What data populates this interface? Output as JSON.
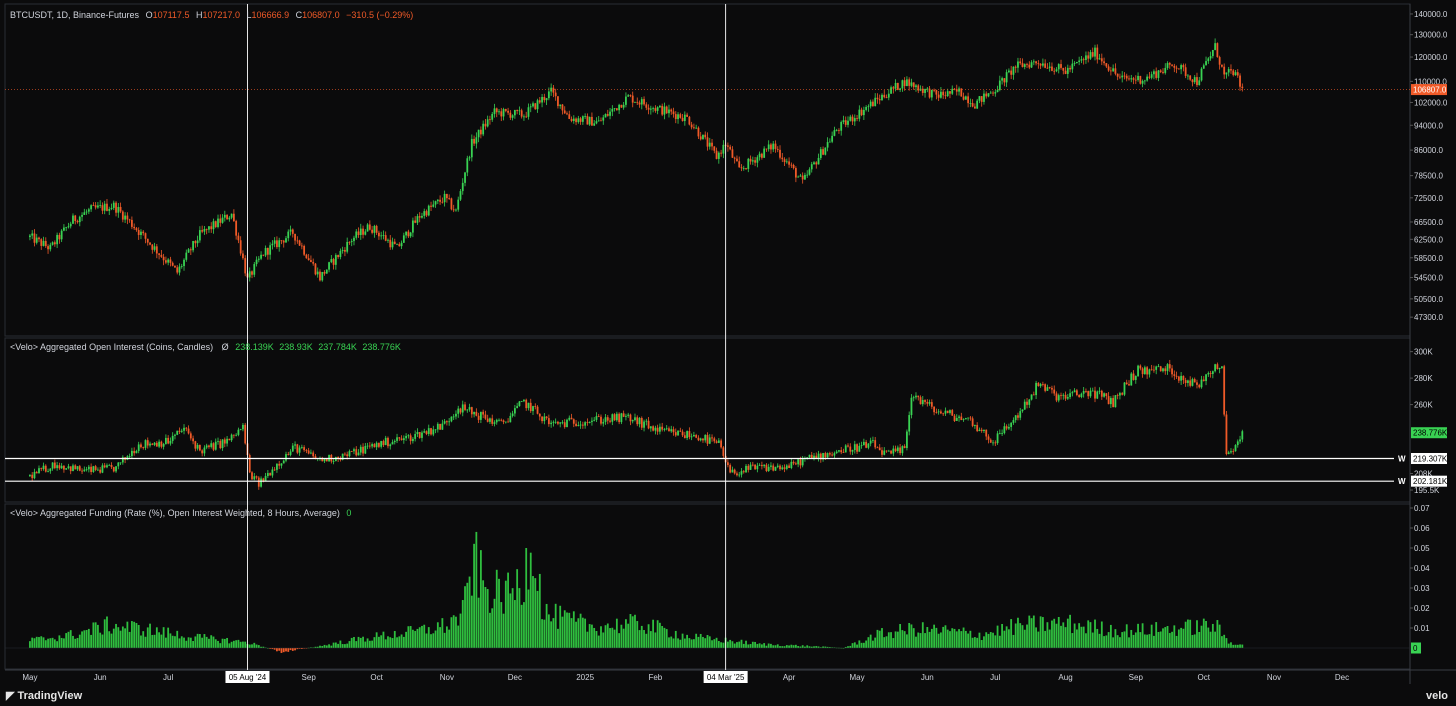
{
  "price_legend": {
    "symbol": "BTCUSDT, 1D, Binance-Futures",
    "o_label": "O",
    "o": "107117.5",
    "h_label": "H",
    "h": "107217.0",
    "l_label": "L",
    "l": "106666.9",
    "c_label": "C",
    "c": "106807.0",
    "change": "−310.5 (−0.29%)"
  },
  "oi_legend": {
    "title": "<Velo> Aggregated Open Interest (Coins, Candles)",
    "symbol": "Ø",
    "values": [
      "238.139K",
      "238.93K",
      "237.784K",
      "238.776K"
    ]
  },
  "funding_legend": {
    "title": "<Velo> Aggregated Funding (Rate (%), Open Interest Weighted, 8 Hours, Average)",
    "value": "0"
  },
  "colors": {
    "up": "#39d353",
    "down": "#f05a28",
    "background": "#0b0b0c",
    "grid": "#1e2025"
  },
  "brand_left": "TradingView",
  "brand_right": "velo",
  "chart_data": [
    {
      "type": "candlestick",
      "name": "BTCUSDT",
      "y_scale": "log",
      "ylim": [
        45500,
        142000
      ],
      "y_ticks": [
        "140000.0",
        "130000.0",
        "120000.0",
        "110000.0",
        "102000.0",
        "94000.0",
        "86000.0",
        "78500.0",
        "72500.0",
        "66500.0",
        "62500.0",
        "58500.0",
        "54500.0",
        "50500.0",
        "47300.0"
      ],
      "last_price_label": "106807.0",
      "last_price": 106807,
      "anchor_points": [
        [
          "2024-05-01",
          63000
        ],
        [
          "2024-05-10",
          60500
        ],
        [
          "2024-05-20",
          67000
        ],
        [
          "2024-05-28",
          69500
        ],
        [
          "2024-06-07",
          70500
        ],
        [
          "2024-06-15",
          66000
        ],
        [
          "2024-06-24",
          61000
        ],
        [
          "2024-07-05",
          55500
        ],
        [
          "2024-07-15",
          63500
        ],
        [
          "2024-07-29",
          68500
        ],
        [
          "2024-08-05",
          54000
        ],
        [
          "2024-08-12",
          59500
        ],
        [
          "2024-08-25",
          64000
        ],
        [
          "2024-09-06",
          54500
        ],
        [
          "2024-09-20",
          62500
        ],
        [
          "2024-09-28",
          65500
        ],
        [
          "2024-10-10",
          60500
        ],
        [
          "2024-10-20",
          68000
        ],
        [
          "2024-10-31",
          72500
        ],
        [
          "2024-11-05",
          69000
        ],
        [
          "2024-11-12",
          88000
        ],
        [
          "2024-11-22",
          98500
        ],
        [
          "2024-12-05",
          97500
        ],
        [
          "2024-12-17",
          106000
        ],
        [
          "2024-12-25",
          96500
        ],
        [
          "2025-01-07",
          95000
        ],
        [
          "2025-01-20",
          104000
        ],
        [
          "2025-02-01",
          100000
        ],
        [
          "2025-02-15",
          96500
        ],
        [
          "2025-02-28",
          84000
        ],
        [
          "2025-03-04",
          88000
        ],
        [
          "2025-03-10",
          80000
        ],
        [
          "2025-03-25",
          87500
        ],
        [
          "2025-04-07",
          76500
        ],
        [
          "2025-04-22",
          92500
        ],
        [
          "2025-05-10",
          103000
        ],
        [
          "2025-05-22",
          110000
        ],
        [
          "2025-06-05",
          104500
        ],
        [
          "2025-06-15",
          106000
        ],
        [
          "2025-06-22",
          101500
        ],
        [
          "2025-07-01",
          107000
        ],
        [
          "2025-07-10",
          116000
        ],
        [
          "2025-07-20",
          118000
        ],
        [
          "2025-08-01",
          114000
        ],
        [
          "2025-08-14",
          122000
        ],
        [
          "2025-08-25",
          111000
        ],
        [
          "2025-09-05",
          111000
        ],
        [
          "2025-09-18",
          117000
        ],
        [
          "2025-09-28",
          110000
        ],
        [
          "2025-10-06",
          124500
        ],
        [
          "2025-10-10",
          112000
        ],
        [
          "2025-10-14",
          114000
        ],
        [
          "2025-10-18",
          106800
        ]
      ]
    },
    {
      "type": "candlestick",
      "name": "Aggregated Open Interest",
      "ylim": [
        191000,
        305000
      ],
      "y_ticks": [
        "300K",
        "280K",
        "260K",
        "208K",
        "195.5K"
      ],
      "last_value_label": "238.776K",
      "last_value": 238776,
      "horizontal_lines": [
        {
          "value": 219307,
          "label": "219.307K",
          "marker": "W"
        },
        {
          "value": 202181,
          "label": "202.181K",
          "marker": "W"
        }
      ],
      "anchor_points": [
        [
          "2024-05-01",
          206000
        ],
        [
          "2024-05-12",
          215000
        ],
        [
          "2024-05-25",
          210000
        ],
        [
          "2024-06-08",
          212000
        ],
        [
          "2024-06-18",
          230000
        ],
        [
          "2024-07-01",
          232000
        ],
        [
          "2024-07-08",
          242000
        ],
        [
          "2024-07-15",
          225000
        ],
        [
          "2024-07-28",
          233000
        ],
        [
          "2024-08-03",
          243000
        ],
        [
          "2024-08-06",
          208000
        ],
        [
          "2024-08-10",
          200000
        ],
        [
          "2024-08-18",
          215000
        ],
        [
          "2024-08-26",
          228000
        ],
        [
          "2024-09-06",
          218000
        ],
        [
          "2024-09-18",
          222000
        ],
        [
          "2024-10-01",
          230000
        ],
        [
          "2024-10-15",
          235000
        ],
        [
          "2024-10-30",
          244000
        ],
        [
          "2024-11-06",
          258000
        ],
        [
          "2024-11-15",
          252000
        ],
        [
          "2024-11-25",
          245000
        ],
        [
          "2024-12-05",
          262000
        ],
        [
          "2024-12-17",
          245000
        ],
        [
          "2025-01-01",
          248000
        ],
        [
          "2025-01-20",
          250000
        ],
        [
          "2025-02-03",
          240000
        ],
        [
          "2025-02-20",
          236000
        ],
        [
          "2025-03-01",
          230000
        ],
        [
          "2025-03-06",
          208000
        ],
        [
          "2025-03-16",
          212000
        ],
        [
          "2025-04-01",
          213000
        ],
        [
          "2025-04-07",
          218000
        ],
        [
          "2025-04-25",
          226000
        ],
        [
          "2025-05-08",
          230000
        ],
        [
          "2025-05-14",
          222000
        ],
        [
          "2025-05-22",
          226000
        ],
        [
          "2025-05-25",
          268000
        ],
        [
          "2025-06-05",
          255000
        ],
        [
          "2025-06-20",
          248000
        ],
        [
          "2025-06-30",
          232000
        ],
        [
          "2025-07-10",
          250000
        ],
        [
          "2025-07-20",
          275000
        ],
        [
          "2025-07-30",
          265000
        ],
        [
          "2025-08-12",
          270000
        ],
        [
          "2025-08-22",
          262000
        ],
        [
          "2025-09-01",
          285000
        ],
        [
          "2025-09-15",
          287000
        ],
        [
          "2025-09-28",
          274000
        ],
        [
          "2025-10-06",
          290000
        ],
        [
          "2025-10-09",
          288000
        ],
        [
          "2025-10-11",
          222000
        ],
        [
          "2025-10-15",
          230000
        ],
        [
          "2025-10-18",
          238776
        ]
      ]
    },
    {
      "type": "bar",
      "name": "Aggregated Funding Rate",
      "ylim": [
        -0.006,
        0.071
      ],
      "y_ticks": [
        "0.07",
        "0.06",
        "0.05",
        "0.04",
        "0.03",
        "0.02",
        "0.01"
      ],
      "last_value_label": "0",
      "anchor_points": [
        [
          "2024-05-01",
          0.004
        ],
        [
          "2024-05-20",
          0.007
        ],
        [
          "2024-06-05",
          0.012
        ],
        [
          "2024-06-20",
          0.01
        ],
        [
          "2024-07-10",
          0.006
        ],
        [
          "2024-08-05",
          0.003
        ],
        [
          "2024-08-20",
          -0.002
        ],
        [
          "2024-09-06",
          0.001
        ],
        [
          "2024-09-25",
          0.005
        ],
        [
          "2024-10-20",
          0.009
        ],
        [
          "2024-11-01",
          0.012
        ],
        [
          "2024-11-08",
          0.018
        ],
        [
          "2024-11-13",
          0.047
        ],
        [
          "2024-11-18",
          0.03
        ],
        [
          "2024-11-28",
          0.028
        ],
        [
          "2024-12-05",
          0.035
        ],
        [
          "2024-12-08",
          0.062
        ],
        [
          "2024-12-14",
          0.018
        ],
        [
          "2025-01-05",
          0.011
        ],
        [
          "2025-01-25",
          0.013
        ],
        [
          "2025-02-15",
          0.006
        ],
        [
          "2025-03-04",
          0.004
        ],
        [
          "2025-03-20",
          0.002
        ],
        [
          "2025-04-10",
          0.001
        ],
        [
          "2025-04-25",
          0.0
        ],
        [
          "2025-05-10",
          0.007
        ],
        [
          "2025-05-25",
          0.01
        ],
        [
          "2025-06-10",
          0.009
        ],
        [
          "2025-06-25",
          0.007
        ],
        [
          "2025-07-12",
          0.012
        ],
        [
          "2025-08-01",
          0.013
        ],
        [
          "2025-08-25",
          0.009
        ],
        [
          "2025-09-15",
          0.01
        ],
        [
          "2025-10-06",
          0.012
        ],
        [
          "2025-10-12",
          0.003
        ],
        [
          "2025-10-18",
          0.002
        ]
      ]
    }
  ],
  "x_axis": {
    "start": "2024-04-20",
    "end": "2025-12-31",
    "ticks": [
      {
        "date": "2024-05-01",
        "label": "May"
      },
      {
        "date": "2024-06-01",
        "label": "Jun"
      },
      {
        "date": "2024-07-01",
        "label": "Jul"
      },
      {
        "date": "2024-09-01",
        "label": "Sep"
      },
      {
        "date": "2024-10-01",
        "label": "Oct"
      },
      {
        "date": "2024-11-01",
        "label": "Nov"
      },
      {
        "date": "2024-12-01",
        "label": "Dec"
      },
      {
        "date": "2025-01-01",
        "label": "2025"
      },
      {
        "date": "2025-02-01",
        "label": "Feb"
      },
      {
        "date": "2025-04-01",
        "label": "Apr"
      },
      {
        "date": "2025-05-01",
        "label": "May"
      },
      {
        "date": "2025-06-01",
        "label": "Jun"
      },
      {
        "date": "2025-07-01",
        "label": "Jul"
      },
      {
        "date": "2025-08-01",
        "label": "Aug"
      },
      {
        "date": "2025-09-01",
        "label": "Sep"
      },
      {
        "date": "2025-10-01",
        "label": "Oct"
      },
      {
        "date": "2025-11-01",
        "label": "Nov"
      },
      {
        "date": "2025-12-01",
        "label": "Dec"
      }
    ],
    "crosshairs": [
      {
        "date": "2024-08-05",
        "label": "05 Aug '24"
      },
      {
        "date": "2025-03-04",
        "label": "04 Mar '25"
      }
    ]
  }
}
